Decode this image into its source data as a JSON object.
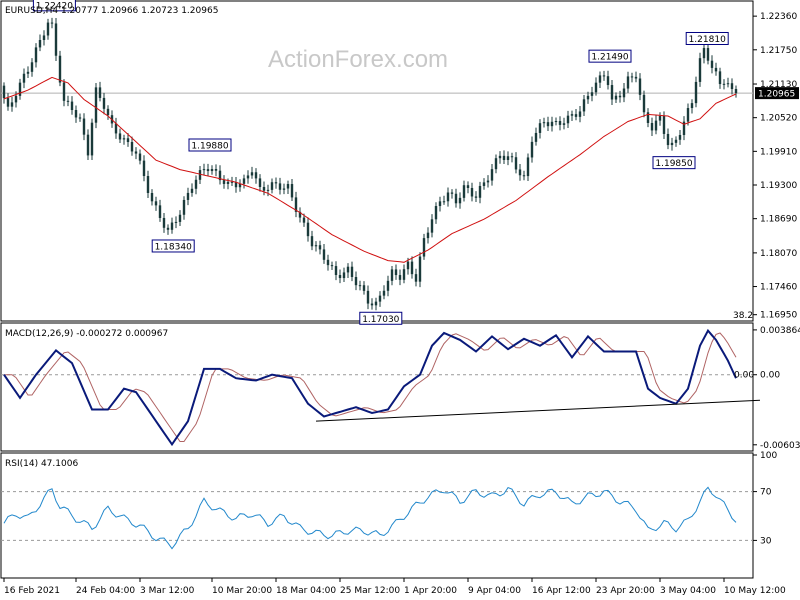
{
  "chart_data": {
    "type": "candlestick",
    "colors": {
      "candle": "#1a3a3a",
      "ma": "#d01010",
      "macd": "#0a1a7a",
      "signal": "#b06464",
      "rsi": "#2288cc",
      "trendline": "#000000",
      "label_border": "#000080",
      "current_badge_bg": "#000000",
      "current_badge_text": "#ffffff",
      "price_line": "#b0b0b0"
    },
    "watermark": "ActionForex.com",
    "price_panel": {
      "header": "EURUSD,H4  1.20777 1.20966 1.20723 1.20965",
      "ylim": [
        1.1689,
        1.2258
      ],
      "y_ticks": [
        "1.22360",
        "1.21750",
        "1.21130",
        "1.20520",
        "1.19910",
        "1.19300",
        "1.18690",
        "1.18070",
        "1.17460",
        "1.16950"
      ],
      "current_price": "1.20965",
      "fib_label": "38.2",
      "annotations": [
        {
          "text": "1.22420",
          "x": 12.6,
          "price": 1.2242
        },
        {
          "text": "1.19880",
          "x": 51.5,
          "price": 1.1988
        },
        {
          "text": "1.18340",
          "x": 42.3,
          "price": 1.1834
        },
        {
          "text": "1.17030",
          "x": 94.2,
          "price": 1.1703
        },
        {
          "text": "1.21490",
          "x": 151.5,
          "price": 1.2149
        },
        {
          "text": "1.19850",
          "x": 167.5,
          "price": 1.1985
        },
        {
          "text": "1.21810",
          "x": 175.8,
          "price": 1.2181
        }
      ],
      "ohlc_anchors": [
        [
          0,
          1.211
        ],
        [
          2,
          1.2065
        ],
        [
          4,
          1.2098
        ],
        [
          7,
          1.214
        ],
        [
          10,
          1.219
        ],
        [
          12.6,
          1.2236
        ],
        [
          14,
          1.2165
        ],
        [
          16,
          1.208
        ],
        [
          18,
          1.207
        ],
        [
          20,
          1.2045
        ],
        [
          22,
          1.199
        ],
        [
          24,
          1.21
        ],
        [
          26,
          1.2075
        ],
        [
          28,
          1.2035
        ],
        [
          31,
          1.201
        ],
        [
          34,
          1.199
        ],
        [
          38,
          1.19
        ],
        [
          42,
          1.1845
        ],
        [
          45,
          1.188
        ],
        [
          48,
          1.193
        ],
        [
          51.5,
          1.1965
        ],
        [
          54,
          1.195
        ],
        [
          57,
          1.193
        ],
        [
          61,
          1.1935
        ],
        [
          63,
          1.196
        ],
        [
          65,
          1.192
        ],
        [
          68,
          1.193
        ],
        [
          72,
          1.1925
        ],
        [
          75,
          1.187
        ],
        [
          78,
          1.1825
        ],
        [
          81,
          1.18
        ],
        [
          84,
          1.1765
        ],
        [
          87,
          1.1775
        ],
        [
          90,
          1.1745
        ],
        [
          92,
          1.172
        ],
        [
          94.2,
          1.1712
        ],
        [
          96,
          1.1745
        ],
        [
          98,
          1.177
        ],
        [
          100,
          1.1765
        ],
        [
          102,
          1.1785
        ],
        [
          104,
          1.176
        ],
        [
          106,
          1.183
        ],
        [
          108,
          1.187
        ],
        [
          110,
          1.19
        ],
        [
          112,
          1.1915
        ],
        [
          114,
          1.19
        ],
        [
          116,
          1.1925
        ],
        [
          119,
          1.191
        ],
        [
          122,
          1.1945
        ],
        [
          125,
          1.1985
        ],
        [
          128,
          1.1975
        ],
        [
          131,
          1.194
        ],
        [
          133,
          1.2015
        ],
        [
          136,
          1.2045
        ],
        [
          139,
          1.204
        ],
        [
          142,
          1.205
        ],
        [
          145,
          1.2065
        ],
        [
          148,
          1.2105
        ],
        [
          151.5,
          1.2135
        ],
        [
          153,
          1.208
        ],
        [
          155,
          1.2095
        ],
        [
          157,
          1.212
        ],
        [
          159,
          1.213
        ],
        [
          161,
          1.2055
        ],
        [
          163,
          1.2035
        ],
        [
          165,
          1.205
        ],
        [
          167.5,
          1.1995
        ],
        [
          169,
          1.201
        ],
        [
          171,
          1.2045
        ],
        [
          173,
          1.208
        ],
        [
          174.5,
          1.2145
        ],
        [
          175.8,
          1.2175
        ],
        [
          177,
          1.216
        ],
        [
          178.5,
          1.214
        ],
        [
          180,
          1.211
        ],
        [
          181.5,
          1.2125
        ],
        [
          183,
          1.2097
        ]
      ],
      "ma_anchors": [
        [
          0,
          1.2086
        ],
        [
          6,
          1.2102
        ],
        [
          12,
          1.2125
        ],
        [
          16,
          1.2115
        ],
        [
          20,
          1.2085
        ],
        [
          26,
          1.2055
        ],
        [
          32,
          1.2015
        ],
        [
          38,
          1.1975
        ],
        [
          44,
          1.1958
        ],
        [
          50,
          1.1948
        ],
        [
          58,
          1.1935
        ],
        [
          66,
          1.1915
        ],
        [
          74,
          1.188
        ],
        [
          82,
          1.184
        ],
        [
          90,
          1.181
        ],
        [
          96,
          1.1793
        ],
        [
          100,
          1.179
        ],
        [
          106,
          1.1812
        ],
        [
          112,
          1.1842
        ],
        [
          120,
          1.1868
        ],
        [
          128,
          1.1902
        ],
        [
          136,
          1.1945
        ],
        [
          144,
          1.1985
        ],
        [
          150,
          1.2018
        ],
        [
          156,
          1.2045
        ],
        [
          161,
          1.2058
        ],
        [
          166,
          1.2055
        ],
        [
          170,
          1.204
        ],
        [
          174,
          1.205
        ],
        [
          178,
          1.2078
        ],
        [
          183,
          1.2095
        ]
      ]
    },
    "macd_panel": {
      "header": "MACD(12,26,9) -0.000272 0.000967",
      "ylim": [
        -0.0064,
        0.0042
      ],
      "y_ticks": [
        "0.003864",
        "0.00",
        "-0.006038"
      ],
      "right_value": "0.00",
      "macd_anchors": [
        [
          0,
          0.0
        ],
        [
          4,
          -0.002
        ],
        [
          8,
          0.0
        ],
        [
          13,
          0.0021
        ],
        [
          17,
          0.001
        ],
        [
          22,
          -0.003
        ],
        [
          26,
          -0.003
        ],
        [
          30,
          -0.0012
        ],
        [
          33,
          -0.0015
        ],
        [
          38,
          -0.004
        ],
        [
          42,
          -0.006
        ],
        [
          46,
          -0.004
        ],
        [
          50,
          0.0005
        ],
        [
          54,
          0.0005
        ],
        [
          58,
          -0.0003
        ],
        [
          63,
          -0.0005
        ],
        [
          67,
          0.0
        ],
        [
          72,
          -0.0003
        ],
        [
          76,
          -0.0025
        ],
        [
          80,
          -0.0036
        ],
        [
          84,
          -0.0032
        ],
        [
          88,
          -0.0028
        ],
        [
          92,
          -0.0033
        ],
        [
          96,
          -0.003
        ],
        [
          100,
          -0.001
        ],
        [
          104,
          0.0
        ],
        [
          107,
          0.0025
        ],
        [
          110,
          0.0036
        ],
        [
          114,
          0.003
        ],
        [
          118,
          0.002
        ],
        [
          122,
          0.0033
        ],
        [
          126,
          0.0022
        ],
        [
          130,
          0.0031
        ],
        [
          134,
          0.0025
        ],
        [
          138,
          0.0034
        ],
        [
          142,
          0.0015
        ],
        [
          146,
          0.0033
        ],
        [
          150,
          0.002
        ],
        [
          154,
          0.002
        ],
        [
          158,
          0.002
        ],
        [
          161,
          -0.0012
        ],
        [
          164,
          -0.002
        ],
        [
          168,
          -0.0025
        ],
        [
          171,
          -0.0012
        ],
        [
          174,
          0.0025
        ],
        [
          176,
          0.0038
        ],
        [
          178,
          0.003
        ],
        [
          181,
          0.0012
        ],
        [
          183,
          -0.0003
        ]
      ],
      "trendline": [
        [
          78,
          -0.004
        ],
        [
          189,
          -0.0022
        ]
      ]
    },
    "rsi_panel": {
      "header": "RSI(14) 47.1006",
      "ylim": [
        0,
        100
      ],
      "y_ticks": [
        "100",
        "70",
        "30"
      ],
      "levels": [
        70,
        30
      ],
      "rsi_anchors": [
        [
          0,
          44
        ],
        [
          3,
          52
        ],
        [
          6,
          48
        ],
        [
          9,
          60
        ],
        [
          12,
          72
        ],
        [
          14,
          58
        ],
        [
          18,
          48
        ],
        [
          22,
          40
        ],
        [
          26,
          56
        ],
        [
          30,
          48
        ],
        [
          34,
          42
        ],
        [
          38,
          32
        ],
        [
          42,
          26
        ],
        [
          46,
          40
        ],
        [
          50,
          62
        ],
        [
          54,
          54
        ],
        [
          58,
          48
        ],
        [
          62,
          52
        ],
        [
          66,
          44
        ],
        [
          70,
          50
        ],
        [
          74,
          40
        ],
        [
          78,
          36
        ],
        [
          82,
          34
        ],
        [
          86,
          38
        ],
        [
          90,
          38
        ],
        [
          94,
          34
        ],
        [
          98,
          44
        ],
        [
          102,
          56
        ],
        [
          106,
          66
        ],
        [
          110,
          72
        ],
        [
          114,
          62
        ],
        [
          118,
          70
        ],
        [
          122,
          66
        ],
        [
          126,
          72
        ],
        [
          130,
          60
        ],
        [
          134,
          68
        ],
        [
          138,
          70
        ],
        [
          142,
          60
        ],
        [
          146,
          66
        ],
        [
          150,
          70
        ],
        [
          154,
          62
        ],
        [
          158,
          56
        ],
        [
          161,
          38
        ],
        [
          165,
          44
        ],
        [
          168,
          40
        ],
        [
          171,
          46
        ],
        [
          174,
          62
        ],
        [
          176,
          72
        ],
        [
          178,
          68
        ],
        [
          181,
          54
        ],
        [
          183,
          47
        ]
      ]
    },
    "x_tick_labels": [
      {
        "x": 0,
        "label": "16 Feb 2021"
      },
      {
        "x": 18,
        "label": "24 Feb 04:00"
      },
      {
        "x": 34,
        "label": "3 Mar 12:00"
      },
      {
        "x": 52,
        "label": "10 Mar 20:00"
      },
      {
        "x": 68,
        "label": "18 Mar 04:00"
      },
      {
        "x": 84,
        "label": "25 Mar 12:00"
      },
      {
        "x": 100,
        "label": "1 Apr 20:00"
      },
      {
        "x": 116,
        "label": "9 Apr 04:00"
      },
      {
        "x": 132,
        "label": "16 Apr 12:00"
      },
      {
        "x": 148,
        "label": "23 Apr 20:00"
      },
      {
        "x": 164,
        "label": "3 May 04:00"
      },
      {
        "x": 180,
        "label": "10 May 12:00"
      }
    ]
  }
}
